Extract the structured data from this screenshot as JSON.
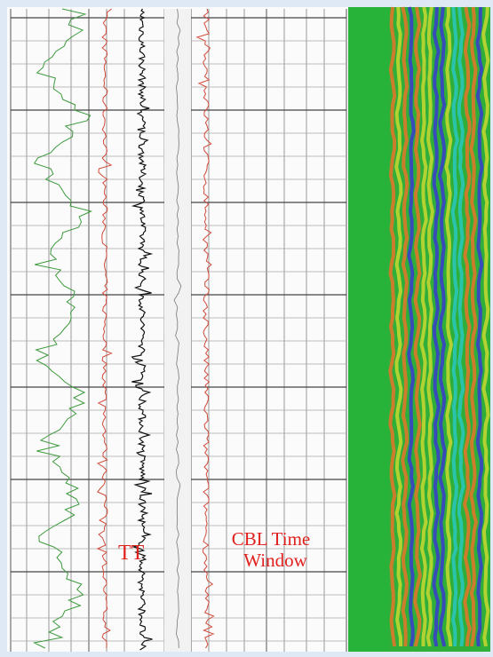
{
  "log": {
    "track_label": "TT",
    "window_label": [
      "CBL Time",
      "Window"
    ]
  }
}
